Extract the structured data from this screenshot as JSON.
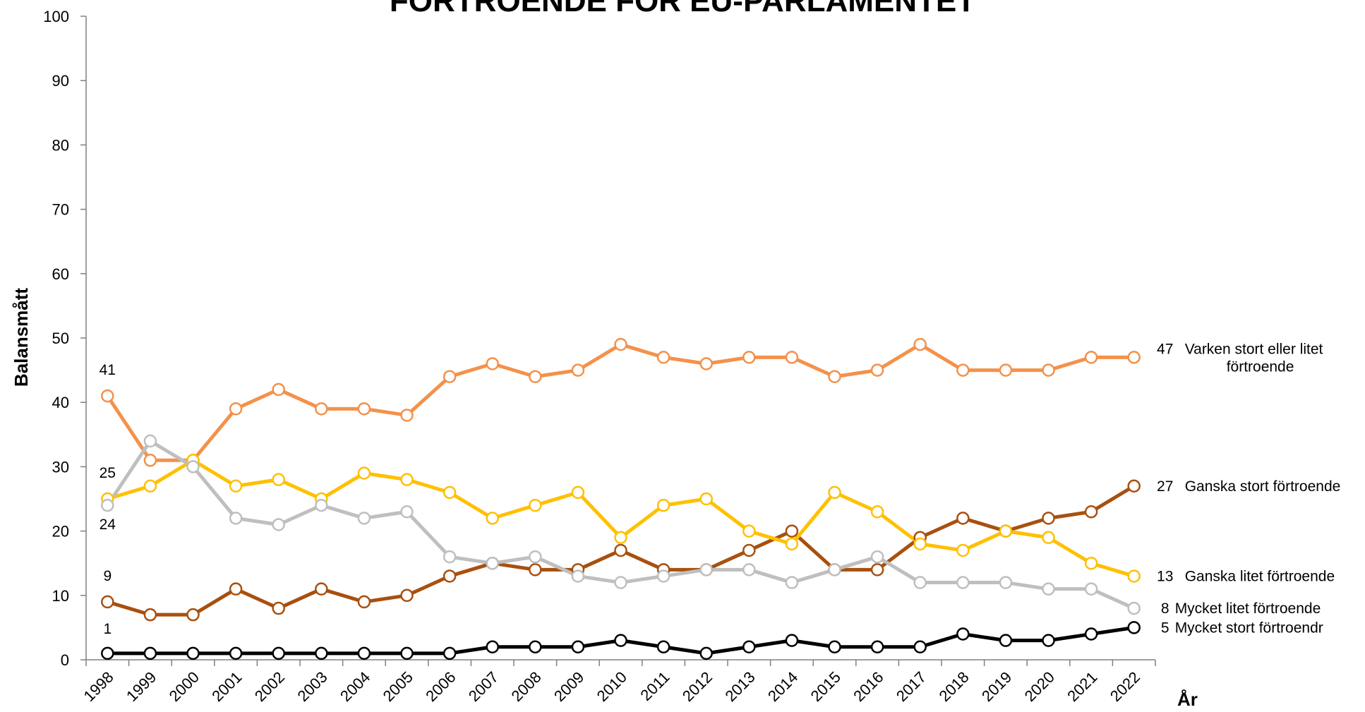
{
  "chart_data": {
    "type": "line",
    "title": "FÖRTROENDE FÖR EU-PARLAMENTET",
    "xlabel": "År",
    "ylabel": "Balansmått",
    "ylim": [
      0,
      100
    ],
    "yticks": [
      0,
      10,
      20,
      30,
      40,
      50,
      60,
      70,
      80,
      90,
      100
    ],
    "grid": false,
    "legend": "right end-labels",
    "categories": [
      "1998",
      "1999",
      "2000",
      "2001",
      "2002",
      "2003",
      "2004",
      "2005",
      "2006",
      "2007",
      "2008",
      "2009",
      "2010",
      "2011",
      "2012",
      "2013",
      "2014",
      "2015",
      "2016",
      "2017",
      "2018",
      "2019",
      "2020",
      "2021",
      "2022"
    ],
    "series": [
      {
        "name": "Varken stort eller litet förtroende",
        "name_lines": [
          "Varken stort eller litet",
          "förtroende"
        ],
        "color": "#F4914A",
        "values": [
          41,
          31,
          31,
          39,
          42,
          39,
          39,
          38,
          44,
          46,
          44,
          45,
          49,
          47,
          46,
          47,
          47,
          44,
          45,
          49,
          45,
          45,
          45,
          47,
          47
        ],
        "start_label": "41",
        "end_label": "47"
      },
      {
        "name": "Ganska stort förtroende",
        "name_lines": [
          "Ganska stort förtroende"
        ],
        "color": "#A8500F",
        "values": [
          9,
          7,
          7,
          11,
          8,
          11,
          9,
          10,
          13,
          15,
          14,
          14,
          17,
          14,
          14,
          17,
          20,
          14,
          14,
          19,
          22,
          20,
          22,
          23,
          27
        ],
        "start_label": "9",
        "end_label": "27"
      },
      {
        "name": "Ganska litet förtroende",
        "name_lines": [
          "Ganska litet förtroende"
        ],
        "color": "#FFC000",
        "values": [
          25,
          27,
          31,
          27,
          28,
          25,
          29,
          28,
          26,
          22,
          24,
          26,
          19,
          24,
          25,
          20,
          18,
          26,
          23,
          18,
          17,
          20,
          19,
          15,
          13
        ],
        "start_label": "25",
        "end_label": "13"
      },
      {
        "name": "Mycket litet förtroende",
        "name_lines": [
          "Mycket litet förtroende"
        ],
        "color": "#BFBFBF",
        "values": [
          24,
          34,
          30,
          22,
          21,
          24,
          22,
          23,
          16,
          15,
          16,
          13,
          12,
          13,
          14,
          14,
          12,
          14,
          16,
          12,
          12,
          12,
          11,
          11,
          8
        ],
        "start_label": "24",
        "end_label": "8"
      },
      {
        "name": "Mycket stort förtroendr",
        "name_lines": [
          "Mycket stort förtroendr"
        ],
        "color": "#000000",
        "values": [
          1,
          1,
          1,
          1,
          1,
          1,
          1,
          1,
          1,
          2,
          2,
          2,
          3,
          2,
          1,
          2,
          3,
          2,
          2,
          2,
          4,
          3,
          3,
          4,
          5
        ],
        "start_label": "1",
        "end_label": "5"
      }
    ]
  }
}
